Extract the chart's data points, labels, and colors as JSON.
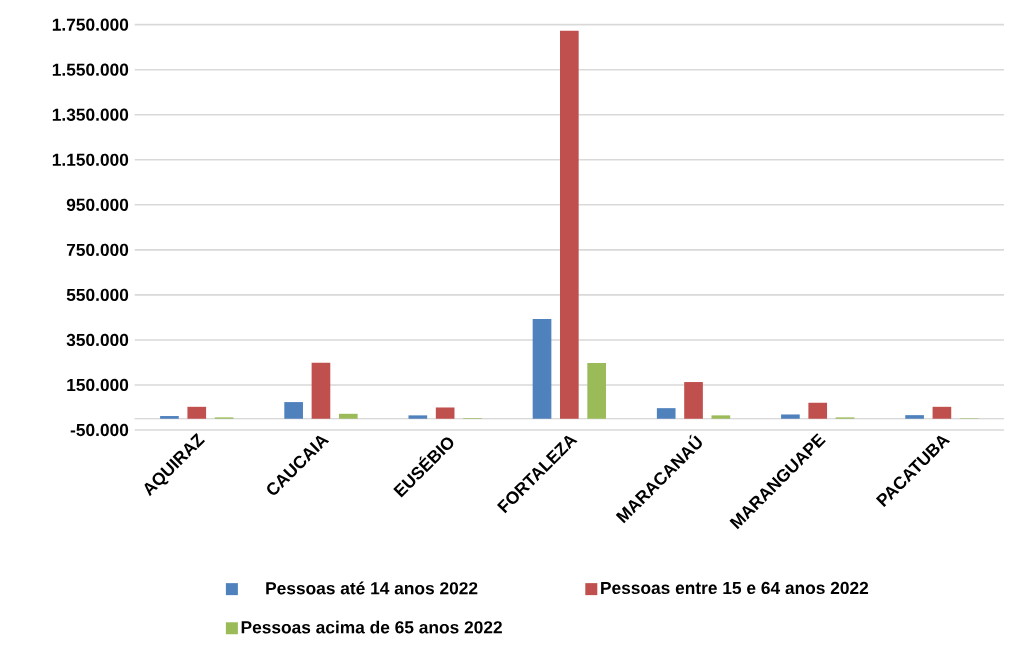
{
  "chart_data": {
    "type": "bar",
    "categories": [
      "AQUIRAZ",
      "CAUCAIA",
      "EUSÉBIO",
      "FORTALEZA",
      "MARACANAÚ",
      "MARANGUAPE",
      "PACATUBA"
    ],
    "series": [
      {
        "name": "Pessoas até 14 anos 2022",
        "color": "#4f81bd",
        "values": [
          12000,
          74000,
          15000,
          443000,
          47000,
          19000,
          16000
        ]
      },
      {
        "name": "Pessoas entre 15 e 64 anos 2022",
        "color": "#c0504d",
        "values": [
          53000,
          249000,
          50000,
          1723000,
          163000,
          71000,
          53000
        ]
      },
      {
        "name": "Pessoas acima de 65 anos 2022",
        "color": "#9bbb59",
        "values": [
          6000,
          22000,
          3000,
          247000,
          15000,
          6000,
          2000
        ]
      }
    ],
    "ylim": [
      -50000,
      1750000
    ],
    "yticks": [
      {
        "value": -50000,
        "label": "-50.000"
      },
      {
        "value": 150000,
        "label": "150.000"
      },
      {
        "value": 350000,
        "label": "350.000"
      },
      {
        "value": 550000,
        "label": "550.000"
      },
      {
        "value": 750000,
        "label": "750.000"
      },
      {
        "value": 950000,
        "label": "950.000"
      },
      {
        "value": 1150000,
        "label": "1.150.000"
      },
      {
        "value": 1350000,
        "label": "1.350.000"
      },
      {
        "value": 1550000,
        "label": "1.550.000"
      },
      {
        "value": 1750000,
        "label": "1.750.000"
      }
    ],
    "grid": "y",
    "legend": "bottom"
  }
}
